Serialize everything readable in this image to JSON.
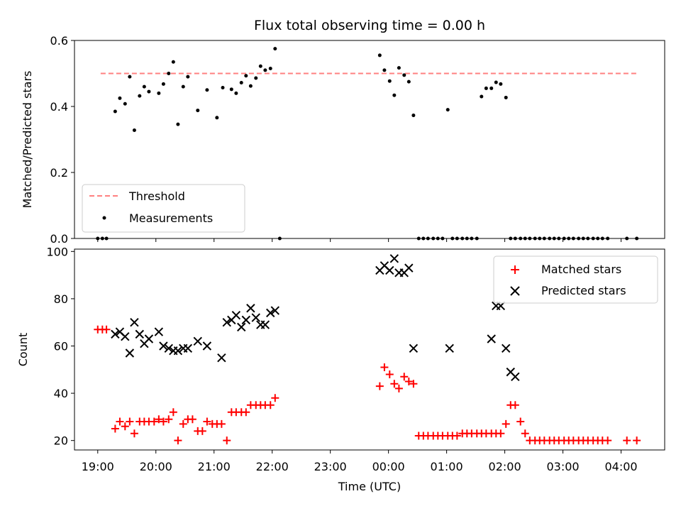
{
  "chart_data": [
    {
      "type": "scatter",
      "title": "Flux total observing time = 0.00 h",
      "xlabel": "",
      "ylabel": "Matched/Predicted stars",
      "x_unit": "hours since 19:00 UTC",
      "xlim": [
        -0.4,
        9.75
      ],
      "ylim": [
        0.0,
        0.6
      ],
      "yticks": [
        0.0,
        0.2,
        0.4,
        0.6
      ],
      "ytick_labels": [
        "0.0",
        "0.2",
        "0.4",
        "0.6"
      ],
      "legend": {
        "placement": "lower-left",
        "entries": [
          "Threshold",
          "Measurements"
        ]
      },
      "threshold": {
        "name": "Threshold",
        "y": 0.5,
        "x_range": [
          0.05,
          9.3
        ],
        "color": "#ff8080",
        "style": "dashed"
      },
      "series": [
        {
          "name": "Measurements",
          "color": "#000000",
          "marker": "dot",
          "x": [
            0.0,
            0.08,
            0.15,
            0.3,
            0.38,
            0.47,
            0.55,
            0.63,
            0.72,
            0.8,
            0.88,
            1.05,
            1.13,
            1.22,
            1.3,
            1.38,
            1.47,
            1.55,
            1.72,
            1.88,
            2.05,
            2.15,
            2.3,
            2.38,
            2.47,
            2.55,
            2.63,
            2.72,
            2.8,
            2.88,
            2.97,
            3.05,
            3.13,
            4.85,
            4.93,
            5.02,
            5.1,
            5.18,
            5.27,
            5.35,
            5.43,
            5.52,
            5.6,
            5.68,
            5.77,
            5.85,
            5.93,
            6.02,
            6.1,
            6.18,
            6.27,
            6.35,
            6.43,
            6.52,
            6.6,
            6.68,
            6.77,
            6.85,
            6.93,
            7.02,
            7.1,
            7.18,
            7.27,
            7.35,
            7.43,
            7.52,
            7.6,
            7.68,
            7.77,
            7.85,
            7.93,
            8.02,
            8.1,
            8.18,
            8.27,
            8.35,
            8.43,
            8.52,
            8.6,
            8.68,
            8.77,
            9.1,
            9.27
          ],
          "y": [
            0.0,
            0.0,
            0.0,
            0.385,
            0.425,
            0.408,
            0.49,
            0.328,
            0.432,
            0.46,
            0.445,
            0.44,
            0.468,
            0.5,
            0.535,
            0.346,
            0.46,
            0.49,
            0.388,
            0.45,
            0.366,
            0.457,
            0.452,
            0.44,
            0.472,
            0.493,
            0.462,
            0.486,
            0.522,
            0.51,
            0.515,
            0.575,
            0.0,
            0.555,
            0.51,
            0.477,
            0.434,
            0.517,
            0.495,
            0.475,
            0.373,
            0.0,
            0.0,
            0.0,
            0.0,
            0.0,
            0.0,
            0.39,
            0.0,
            0.0,
            0.0,
            0.0,
            0.0,
            0.0,
            0.43,
            0.455,
            0.455,
            0.473,
            0.468,
            0.427,
            0.0,
            0.0,
            0.0,
            0.0,
            0.0,
            0.0,
            0.0,
            0.0,
            0.0,
            0.0,
            0.0,
            0.0,
            0.0,
            0.0,
            0.0,
            0.0,
            0.0,
            0.0,
            0.0,
            0.0,
            0.0,
            0.0,
            0.0
          ]
        }
      ]
    },
    {
      "type": "scatter",
      "title": "",
      "xlabel": "Time (UTC)",
      "ylabel": "Count",
      "x_unit": "hours since 19:00 UTC",
      "xlim": [
        -0.4,
        9.75
      ],
      "ylim": [
        16,
        101
      ],
      "yticks": [
        20,
        40,
        60,
        80,
        100
      ],
      "ytick_labels": [
        "20",
        "40",
        "60",
        "80",
        "100"
      ],
      "xticks": [
        0,
        1,
        2,
        3,
        4,
        5,
        6,
        7,
        8,
        9
      ],
      "xtick_labels": [
        "19:00",
        "20:00",
        "21:00",
        "22:00",
        "23:00",
        "00:00",
        "01:00",
        "02:00",
        "03:00",
        "04:00"
      ],
      "legend": {
        "placement": "upper-right",
        "entries": [
          "Matched stars",
          "Predicted stars"
        ]
      },
      "series": [
        {
          "name": "Matched stars",
          "color": "#ff0000",
          "marker": "plus",
          "x": [
            0.0,
            0.08,
            0.15,
            0.3,
            0.38,
            0.47,
            0.55,
            0.63,
            0.72,
            0.8,
            0.88,
            0.97,
            1.05,
            1.13,
            1.22,
            1.3,
            1.38,
            1.47,
            1.55,
            1.63,
            1.72,
            1.8,
            1.88,
            1.97,
            2.05,
            2.13,
            2.22,
            2.3,
            2.38,
            2.47,
            2.55,
            2.63,
            2.72,
            2.8,
            2.88,
            2.97,
            3.05,
            4.85,
            4.93,
            5.02,
            5.1,
            5.18,
            5.27,
            5.35,
            5.43,
            5.52,
            5.6,
            5.68,
            5.77,
            5.85,
            5.93,
            6.02,
            6.1,
            6.18,
            6.27,
            6.35,
            6.43,
            6.52,
            6.6,
            6.68,
            6.77,
            6.85,
            6.93,
            7.02,
            7.1,
            7.18,
            7.27,
            7.35,
            7.43,
            7.52,
            7.6,
            7.68,
            7.77,
            7.85,
            7.93,
            8.02,
            8.1,
            8.18,
            8.27,
            8.35,
            8.43,
            8.52,
            8.6,
            8.68,
            8.77,
            9.1,
            9.27
          ],
          "y": [
            67,
            67,
            67,
            25,
            28,
            26,
            28,
            23,
            28,
            28,
            28,
            28,
            29,
            28,
            29,
            32,
            20,
            27,
            29,
            29,
            24,
            24,
            28,
            27,
            27,
            27,
            20,
            32,
            32,
            32,
            32,
            35,
            35,
            35,
            35,
            35,
            38,
            43,
            51,
            48,
            44,
            42,
            47,
            45,
            44,
            22,
            22,
            22,
            22,
            22,
            22,
            22,
            22,
            22,
            23,
            23,
            23,
            23,
            23,
            23,
            23,
            23,
            23,
            27,
            35,
            35,
            28,
            23,
            20,
            20,
            20,
            20,
            20,
            20,
            20,
            20,
            20,
            20,
            20,
            20,
            20,
            20,
            20,
            20,
            20,
            20,
            20
          ]
        },
        {
          "name": "Predicted stars",
          "color": "#000000",
          "marker": "x",
          "x": [
            0.3,
            0.38,
            0.47,
            0.55,
            0.63,
            0.72,
            0.8,
            0.88,
            1.05,
            1.13,
            1.22,
            1.3,
            1.38,
            1.47,
            1.55,
            1.72,
            1.88,
            2.13,
            2.22,
            2.3,
            2.38,
            2.47,
            2.55,
            2.63,
            2.72,
            2.8,
            2.88,
            2.97,
            3.05,
            4.85,
            4.93,
            5.02,
            5.1,
            5.18,
            5.27,
            5.35,
            5.43,
            6.05,
            6.77,
            6.85,
            6.93,
            7.02,
            7.1,
            7.18
          ],
          "y": [
            65,
            66,
            64,
            57,
            70,
            65,
            61,
            63,
            66,
            60,
            59,
            58,
            58,
            59,
            59,
            62,
            60,
            55,
            70,
            71,
            73,
            68,
            71,
            76,
            72,
            69,
            69,
            74,
            75,
            92,
            94,
            92,
            97,
            91,
            91,
            93,
            59,
            59,
            63,
            77,
            77,
            59,
            49,
            47
          ]
        }
      ]
    }
  ]
}
